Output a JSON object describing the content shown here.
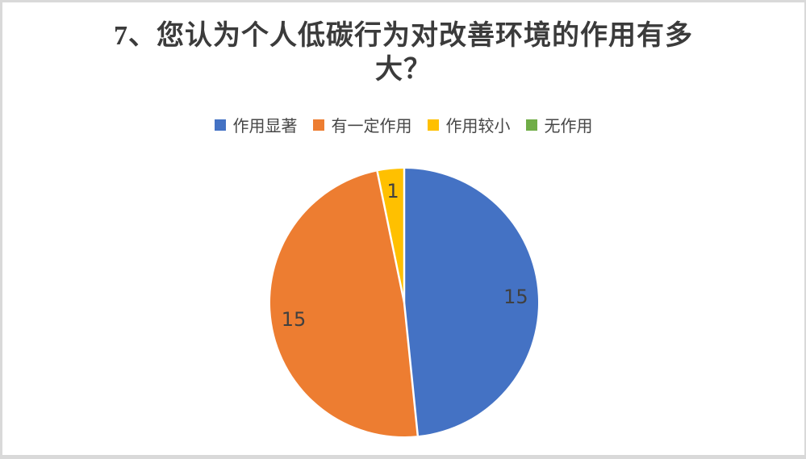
{
  "title": {
    "full": "7、您认为个人低碳行为对改善环境的作用有多大？",
    "lines": [
      "7、您认为个人低碳行为对改善环境的作用有多",
      "大？"
    ]
  },
  "chart_data": {
    "type": "pie",
    "title": "7、您认为个人低碳行为对改善环境的作用有多大？",
    "categories": [
      "作用显著",
      "有一定作用",
      "作用较小",
      "无作用"
    ],
    "values": [
      15,
      15,
      1,
      0
    ],
    "colors": [
      "#4472c4",
      "#ed7d31",
      "#ffc000",
      "#70ad47"
    ],
    "data_label_values": [
      "15",
      "15",
      "1"
    ],
    "label_color": "#404040",
    "separator_color": "#ffffff",
    "legend_position": "top",
    "start_angle_deg": 0,
    "direction": "clockwise"
  },
  "frame": {
    "background": "#ffffff",
    "border_color": "#d9d9d9",
    "title_color": "#3b3b3b",
    "legend_text_color": "#474747"
  }
}
